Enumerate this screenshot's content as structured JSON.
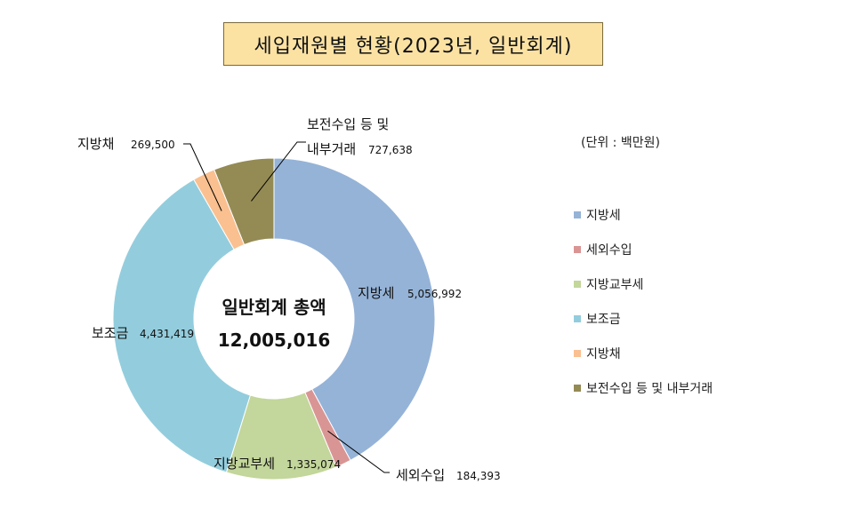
{
  "title": "세입재원별  현황(2023년,  일반회계)",
  "unit_label": "(단위  : 백만원)",
  "center": {
    "line1": "일반회계 총액",
    "line2": "12,005,016"
  },
  "colors": {
    "지방세": "#95b3d7",
    "세외수입": "#d99594",
    "지방교부세": "#c3d69b",
    "보조금": "#93cddd",
    "지방채": "#fac090",
    "보전수입 등 및 내부거래": "#948a54"
  },
  "chart_data": {
    "type": "pie",
    "subtype": "donut",
    "title": "세입재원별  현황(2023년,  일반회계)",
    "unit": "백만원",
    "total": 12005016,
    "total_label": "12,005,016",
    "categories": [
      "지방세",
      "세외수입",
      "지방교부세",
      "보조금",
      "지방채",
      "보전수입 등 및 내부거래"
    ],
    "values": [
      5056992,
      184393,
      1335074,
      4431419,
      269500,
      727638
    ],
    "labels": [
      {
        "name": "지방세",
        "value": "5,056,992"
      },
      {
        "name": "세외수입",
        "value": "184,393"
      },
      {
        "name": "지방교부세",
        "value": "1,335,074"
      },
      {
        "name": "보조금",
        "value": "4,431,419"
      },
      {
        "name": "지방채",
        "value": "269,500"
      },
      {
        "name_lines": [
          "보전수입 등 및",
          "내부거래"
        ],
        "value": "727,638"
      }
    ],
    "legend": [
      "지방세",
      "세외수입",
      "지방교부세",
      "보조금",
      "지방채",
      "보전수입 등 및 내부거래"
    ],
    "legend_position": "right"
  }
}
